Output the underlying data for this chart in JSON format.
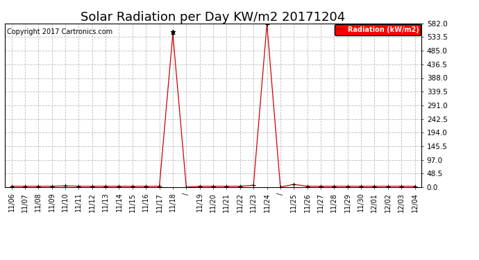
{
  "title": "Solar Radiation per Day KW/m2 20171204",
  "copyright": "Copyright 2017 Cartronics.com",
  "legend_label": "Radiation (kW/m2)",
  "legend_bg": "#ff0000",
  "legend_text_color": "#ffffff",
  "background_color": "#ffffff",
  "grid_color": "#bbbbbb",
  "line_color": "#cc0000",
  "marker_color": "#000000",
  "ylim": [
    0.0,
    582.0
  ],
  "yticks": [
    0.0,
    48.5,
    97.0,
    145.5,
    194.0,
    242.5,
    291.0,
    339.5,
    388.0,
    436.5,
    485.0,
    533.5,
    582.0
  ],
  "x_labels": [
    "11/06",
    "11/07",
    "11/08",
    "11/09",
    "11/10",
    "11/11",
    "11/12",
    "11/13",
    "11/14",
    "11/15",
    "11/16",
    "11/17",
    "11/18",
    "/",
    "11/19",
    "11/20",
    "11/21",
    "11/22",
    "11/23",
    "11/24",
    "/",
    "11/25",
    "11/26",
    "11/27",
    "11/28",
    "11/29",
    "11/30",
    "12/01",
    "12/02",
    "12/03",
    "12/04"
  ],
  "values": [
    3.5,
    3.5,
    3.5,
    3.5,
    5.0,
    3.5,
    3.5,
    3.5,
    3.5,
    3.5,
    3.5,
    3.5,
    545.0,
    0.5,
    3.5,
    3.5,
    3.5,
    3.5,
    7.0,
    580.0,
    0.5,
    10.0,
    3.5,
    3.5,
    3.5,
    3.5,
    3.5,
    3.5,
    3.5,
    3.5,
    3.5
  ],
  "peak1_index": 12,
  "peak1_value": 545.0,
  "peak2_index": 19,
  "peak2_value": 580.0,
  "title_fontsize": 13,
  "copyright_fontsize": 7,
  "tick_fontsize": 7,
  "ytick_fontsize": 7.5
}
